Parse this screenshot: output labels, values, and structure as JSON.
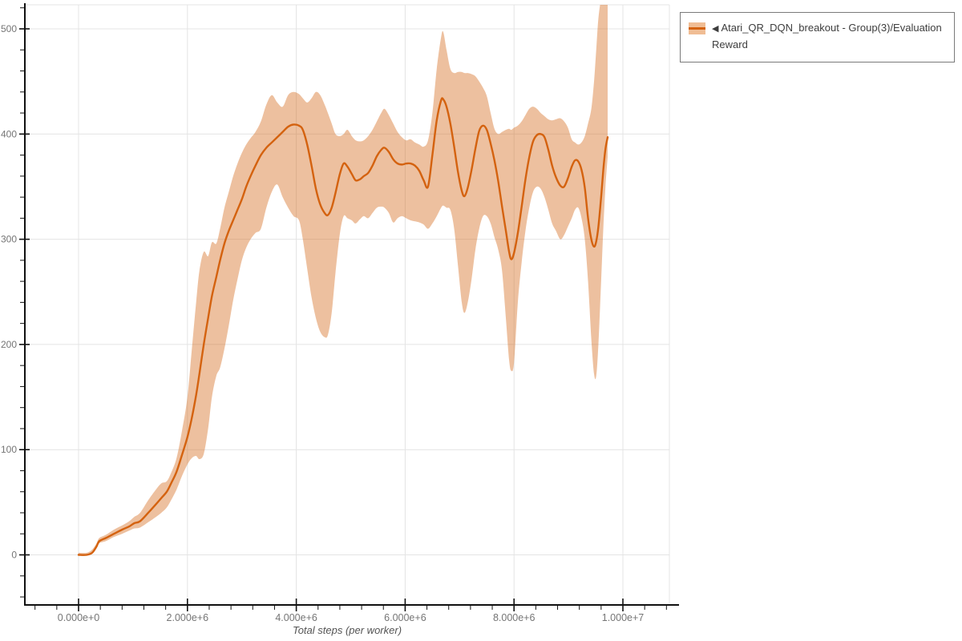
{
  "page": {
    "background": "#ffffff"
  },
  "legend": {
    "arrow": "◀",
    "label": "Atari_QR_DQN_breakout - Group(3)/Evaluation Reward"
  },
  "chart_data": {
    "type": "line",
    "title": "",
    "xlabel": "Total steps (per worker)",
    "ylabel": "",
    "grid": true,
    "legend_position": "top-right",
    "x_ticks": [
      {
        "value_e6": 0,
        "label": "0.000e+0"
      },
      {
        "value_e6": 2,
        "label": "2.000e+6"
      },
      {
        "value_e6": 4,
        "label": "4.000e+6"
      },
      {
        "value_e6": 6,
        "label": "6.000e+6"
      },
      {
        "value_e6": 8,
        "label": "8.000e+6"
      },
      {
        "value_e6": 10,
        "label": "1.000e+7"
      }
    ],
    "y_ticks": [
      0,
      100,
      200,
      300,
      400,
      500
    ],
    "x_minor_step_e6": 0.4,
    "x_minor_start_e6": -0.8,
    "x_minor_end_e6": 10.8,
    "y_minor_step": 20,
    "y_minor_start": -40,
    "y_minor_end": 520,
    "xlim_e6": [
      -0.99,
      10.85
    ],
    "ylim": [
      -48,
      523
    ],
    "colors": {
      "line": "#d4620f",
      "band": "rgba(212,104,26,0.42)",
      "band_solid": "#f0bd94",
      "grid": "#e4e4e4",
      "axis": "#111111",
      "tick_label": "#757575",
      "axis_label": "#545454",
      "legend_border": "#7a7a7a",
      "legend_text": "#3d3d3d"
    },
    "series": [
      {
        "name": "Atari_QR_DQN_breakout - Group(3)/Evaluation Reward",
        "steps_e6": [
          0,
          0.15,
          0.25,
          0.33,
          0.38,
          0.5,
          0.65,
          0.8,
          0.93,
          1.02,
          1.13,
          1.28,
          1.42,
          1.52,
          1.62,
          1.7,
          1.8,
          1.9,
          2,
          2.08,
          2.16,
          2.22,
          2.3,
          2.38,
          2.45,
          2.53,
          2.6,
          2.68,
          2.76,
          2.84,
          2.92,
          3,
          3.08,
          3.16,
          3.25,
          3.35,
          3.45,
          3.55,
          3.65,
          3.75,
          3.85,
          3.95,
          4.05,
          4.12,
          4.2,
          4.28,
          4.36,
          4.44,
          4.52,
          4.58,
          4.65,
          4.72,
          4.8,
          4.87,
          4.94,
          5.02,
          5.09,
          5.17,
          5.24,
          5.32,
          5.4,
          5.48,
          5.56,
          5.62,
          5.7,
          5.78,
          5.86,
          5.94,
          6.02,
          6.1,
          6.18,
          6.26,
          6.34,
          6.42,
          6.5,
          6.58,
          6.66,
          6.7,
          6.76,
          6.83,
          6.9,
          6.97,
          7.04,
          7.09,
          7.15,
          7.22,
          7.29,
          7.36,
          7.43,
          7.5,
          7.57,
          7.64,
          7.71,
          7.78,
          7.85,
          7.91,
          7.95,
          8,
          8.07,
          8.14,
          8.21,
          8.28,
          8.35,
          8.42,
          8.49,
          8.56,
          8.63,
          8.7,
          8.77,
          8.85,
          8.92,
          8.99,
          9.06,
          9.12,
          9.18,
          9.24,
          9.3,
          9.36,
          9.42,
          9.47,
          9.51,
          9.55,
          9.6,
          9.64,
          9.68,
          9.72
        ],
        "mean": [
          0,
          0,
          2,
          8,
          13,
          16,
          20,
          24,
          27,
          30,
          32,
          40,
          48,
          54,
          60,
          68,
          79,
          95,
          112,
          130,
          152,
          172,
          200,
          225,
          246,
          264,
          280,
          296,
          308,
          318,
          328,
          338,
          350,
          360,
          370,
          380,
          387,
          392,
          397,
          402,
          407,
          409,
          408,
          404,
          390,
          370,
          348,
          333,
          325,
          323,
          330,
          344,
          362,
          372,
          369,
          362,
          356,
          357,
          360,
          363,
          370,
          379,
          385,
          387,
          383,
          376,
          372,
          371,
          372,
          372,
          370,
          365,
          356,
          350,
          380,
          413,
          432,
          433,
          426,
          410,
          388,
          364,
          346,
          341,
          349,
          366,
          386,
          403,
          408,
          404,
          391,
          375,
          355,
          331,
          308,
          288,
          281,
          287,
          306,
          331,
          357,
          378,
          393,
          399,
          400,
          397,
          385,
          370,
          359,
          351,
          350,
          358,
          369,
          375,
          374,
          366,
          349,
          320,
          300,
          293,
          298,
          312,
          340,
          366,
          386,
          397
        ],
        "lo": [
          0,
          0,
          1,
          6,
          11,
          13,
          17,
          20,
          23,
          25,
          26,
          31,
          36,
          40,
          45,
          52,
          62,
          75,
          86,
          92,
          94,
          91,
          96,
          120,
          150,
          170,
          178,
          196,
          218,
          242,
          262,
          280,
          292,
          300,
          306,
          310,
          330,
          345,
          352,
          340,
          330,
          322,
          318,
          300,
          272,
          245,
          225,
          212,
          207,
          209,
          230,
          268,
          305,
          322,
          320,
          318,
          315,
          319,
          322,
          320,
          325,
          330,
          331,
          330,
          325,
          316,
          320,
          322,
          320,
          318,
          317,
          316,
          314,
          310,
          315,
          322,
          330,
          332,
          330,
          328,
          310,
          275,
          240,
          230,
          240,
          262,
          290,
          310,
          322,
          322,
          315,
          302,
          290,
          270,
          225,
          185,
          175,
          183,
          240,
          278,
          308,
          330,
          345,
          350,
          348,
          340,
          328,
          315,
          308,
          300,
          304,
          312,
          320,
          328,
          330,
          320,
          300,
          260,
          205,
          172,
          170,
          200,
          260,
          310,
          350,
          378
        ],
        "hi": [
          2,
          2,
          5,
          11,
          16,
          19,
          24,
          28,
          32,
          36,
          40,
          52,
          62,
          68,
          70,
          78,
          92,
          118,
          150,
          195,
          240,
          270,
          288,
          284,
          297,
          296,
          310,
          330,
          345,
          360,
          372,
          382,
          390,
          396,
          402,
          412,
          428,
          437,
          430,
          426,
          437,
          440,
          438,
          434,
          430,
          434,
          440,
          437,
          428,
          420,
          410,
          400,
          398,
          400,
          404,
          398,
          394,
          393,
          394,
          398,
          404,
          412,
          420,
          424,
          418,
          410,
          402,
          397,
          394,
          395,
          392,
          390,
          388,
          394,
          420,
          462,
          492,
          497,
          480,
          462,
          458,
          459,
          459,
          458,
          458,
          457,
          455,
          450,
          444,
          436,
          420,
          405,
          400,
          402,
          404,
          405,
          404,
          406,
          408,
          412,
          418,
          424,
          426,
          424,
          420,
          417,
          414,
          413,
          414,
          415,
          412,
          406,
          395,
          392,
          390,
          392,
          398,
          410,
          424,
          450,
          480,
          510,
          528,
          528,
          528,
          528
        ]
      }
    ]
  }
}
